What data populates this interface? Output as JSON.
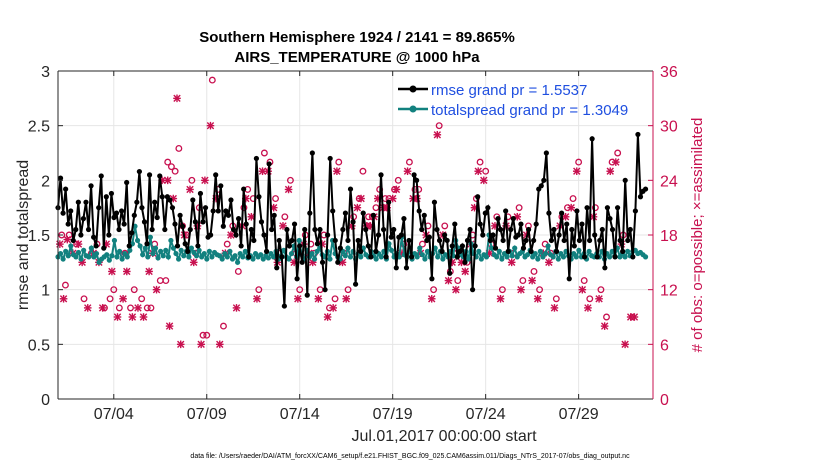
{
  "chart_data": {
    "type": "line",
    "title_line1": "Southern Hemisphere 1924 / 2141 = 89.865%",
    "title_line2": "AIRS_TEMPERATURE @ 1000 hPa",
    "xlabel": "Jul.01,2017 00:00:00 start",
    "ylabel_left": "rmse and totalspread",
    "ylabel_right": "# of obs: o=possible; ×=assimilated",
    "xlim": [
      1,
      33
    ],
    "ylim_left": [
      0,
      3
    ],
    "ylim_right": [
      0,
      36
    ],
    "x_ticks": [
      4,
      9,
      14,
      19,
      24,
      29
    ],
    "x_tick_labels": [
      "07/04",
      "07/09",
      "07/14",
      "07/19",
      "07/24",
      "07/29"
    ],
    "y_ticks_left": [
      0,
      0.5,
      1,
      1.5,
      2,
      2.5,
      3
    ],
    "y_tick_labels_left": [
      "0",
      "0.5",
      "1",
      "1.5",
      "2",
      "2.5",
      "3"
    ],
    "y_ticks_right": [
      0,
      6,
      12,
      18,
      24,
      30,
      36
    ],
    "y_tick_labels_right": [
      "0",
      "6",
      "12",
      "18",
      "24",
      "30",
      "36"
    ],
    "legend": [
      "rmse grand pr = 1.5537",
      "totalspread grand pr = 1.3049"
    ],
    "footnote": "data file: /Users/raeder/DAI/ATM_forcXX/CAM6_setup/f.e21.FHIST_BGC.f09_025.CAM6assim.011/Diags_NTrS_2017-07/obs_diag_output.nc",
    "colors": {
      "rmse": "#000000",
      "spread": "#12817f",
      "obs": "#c8104f",
      "grid": "#e6e6e6"
    },
    "series": [
      {
        "name": "rmse",
        "values": [
          1.75,
          2.02,
          1.7,
          1.92,
          1.6,
          1.72,
          1.45,
          1.55,
          1.8,
          1.5,
          1.65,
          1.8,
          1.55,
          1.95,
          1.48,
          1.4,
          1.75,
          2.04,
          1.38,
          1.85,
          1.5,
          1.88,
          1.66,
          1.7,
          1.55,
          1.72,
          1.6,
          1.98,
          1.4,
          1.52,
          1.68,
          1.8,
          2.08,
          1.75,
          1.62,
          1.42,
          2.05,
          1.55,
          1.8,
          1.66,
          2.04,
          1.85,
          1.55,
          1.85,
          1.82,
          1.75,
          1.6,
          1.4,
          1.68,
          1.58,
          1.42,
          1.35,
          1.55,
          1.82,
          1.62,
          1.4,
          1.88,
          1.62,
          1.75,
          1.48,
          1.5,
          1.72,
          2.05,
          1.72,
          1.95,
          1.58,
          1.72,
          1.68,
          1.82,
          1.55,
          1.5,
          1.65,
          1.4,
          1.92,
          1.6,
          1.3,
          1.55,
          1.45,
          2.2,
          1.85,
          1.62,
          1.5,
          1.35,
          2.15,
          1.55,
          1.68,
          1.2,
          1.45,
          1.3,
          0.85,
          1.55,
          1.4,
          1.45,
          1.6,
          1.1,
          1.4,
          1.25,
          1.55,
          0.95,
          1.7,
          2.25,
          1.55,
          1.42,
          1.55,
          1.25,
          1.0,
          1.5,
          2.2,
          1.72,
          1.45,
          1.25,
          1.38,
          1.55,
          1.7,
          1.45,
          1.92,
          1.62,
          1.05,
          1.45,
          1.35,
          1.7,
          1.55,
          1.4,
          1.3,
          1.68,
          1.35,
          1.5,
          2.05,
          1.55,
          1.3,
          1.8,
          1.48,
          1.55,
          1.2,
          1.48,
          1.5,
          1.65,
          1.2,
          1.45,
          1.3,
          2.05,
          2.0,
          1.72,
          1.55,
          1.68,
          1.45,
          1.48,
          1.1,
          1.8,
          1.55,
          1.45,
          1.35,
          1.5,
          1.45,
          1.15,
          1.4,
          1.6,
          1.3,
          1.35,
          1.4,
          1.25,
          1.45,
          1.55,
          1.0,
          1.4,
          1.85,
          1.6,
          1.5,
          1.7,
          1.75,
          1.45,
          1.5,
          1.38,
          1.65,
          1.55,
          1.45,
          1.72,
          1.35,
          1.55,
          1.65,
          1.48,
          1.5,
          1.6,
          1.38,
          1.45,
          1.55,
          1.35,
          1.45,
          1.6,
          1.92,
          1.95,
          2.0,
          2.25,
          1.7,
          1.45,
          1.55,
          1.35,
          1.5,
          1.7,
          1.45,
          1.6,
          1.1,
          1.55,
          1.4,
          1.72,
          1.45,
          1.6,
          1.3,
          1.75,
          1.45,
          2.38,
          1.5,
          1.3,
          1.45,
          1.55,
          1.2,
          1.75,
          1.65,
          1.55,
          1.3,
          1.75,
          1.45,
          1.35,
          2.0,
          1.45,
          1.55,
          1.3,
          1.72,
          2.42,
          1.85,
          1.9,
          1.92
        ]
      },
      {
        "name": "totalspread",
        "values": [
          1.3,
          1.33,
          1.28,
          1.35,
          1.31,
          1.4,
          1.32,
          1.3,
          1.34,
          1.28,
          1.36,
          1.31,
          1.3,
          1.38,
          1.3,
          1.33,
          1.25,
          1.28,
          1.3,
          1.32,
          1.27,
          1.31,
          1.45,
          1.3,
          1.35,
          1.28,
          1.33,
          1.3,
          1.36,
          1.42,
          1.58,
          1.45,
          1.4,
          1.32,
          1.38,
          1.3,
          1.48,
          1.33,
          1.38,
          1.29,
          1.35,
          1.31,
          1.36,
          1.3,
          1.45,
          1.38,
          1.33,
          1.28,
          1.36,
          1.31,
          1.35,
          1.3,
          1.38,
          1.34,
          1.31,
          1.36,
          1.3,
          1.33,
          1.28,
          1.35,
          1.3,
          1.34,
          1.32,
          1.31,
          1.28,
          1.33,
          1.3,
          1.35,
          1.28,
          1.31,
          1.25,
          1.33,
          1.3,
          1.35,
          1.29,
          1.31,
          1.28,
          1.33,
          1.3,
          1.32,
          1.28,
          1.31,
          1.29,
          1.33,
          1.3,
          1.35,
          1.28,
          1.31,
          1.36,
          1.3,
          1.28,
          1.33,
          1.4,
          1.3,
          1.45,
          1.32,
          1.28,
          1.36,
          1.3,
          1.33,
          1.28,
          1.35,
          1.38,
          1.32,
          1.3,
          1.35,
          1.28,
          1.45,
          1.33,
          1.3,
          1.28,
          1.35,
          1.31,
          1.38,
          1.3,
          1.35,
          1.28,
          1.33,
          1.3,
          1.38,
          1.32,
          1.3,
          1.35,
          1.31,
          1.28,
          1.33,
          1.3,
          1.35,
          1.28,
          1.42,
          1.36,
          1.3,
          1.33,
          1.3,
          1.48,
          1.32,
          1.3,
          1.35,
          1.28,
          1.33,
          1.3,
          1.38,
          1.32,
          1.28,
          1.35,
          1.3,
          1.33,
          1.38,
          1.3,
          1.35,
          1.28,
          1.32,
          1.3,
          1.35,
          1.31,
          1.45,
          1.38,
          1.32,
          1.3,
          1.35,
          1.28,
          1.42,
          1.33,
          1.3,
          1.35,
          1.28,
          1.32,
          1.3,
          1.5,
          1.38,
          1.32,
          1.3,
          1.35,
          1.28,
          1.33,
          1.3,
          1.35,
          1.31,
          1.38,
          1.3,
          1.33,
          1.35,
          1.3,
          1.32,
          1.36,
          1.3,
          1.33,
          1.28,
          1.35,
          1.3,
          1.33,
          1.4,
          1.32,
          1.3,
          1.35,
          1.28,
          1.33,
          1.3,
          1.35,
          1.31,
          1.28,
          1.33,
          1.3,
          1.36,
          1.3,
          1.33,
          1.28,
          1.35,
          1.31,
          1.3,
          1.33,
          1.3,
          1.35,
          1.28,
          1.33,
          1.3,
          1.35,
          1.31,
          1.38,
          1.3,
          1.33,
          1.3,
          1.35,
          1.31,
          1.35,
          1.36,
          1.33,
          1.34,
          1.32,
          1.3
        ]
      }
    ],
    "obs_possible": [
      [
        1.2,
        18
      ],
      [
        1.4,
        12.5
      ],
      [
        1.6,
        18
      ],
      [
        2.0,
        17
      ],
      [
        2.4,
        11
      ],
      [
        2.8,
        16
      ],
      [
        3.1,
        17
      ],
      [
        3.5,
        10
      ],
      [
        3.8,
        11
      ],
      [
        4.0,
        12
      ],
      [
        4.3,
        10
      ],
      [
        4.6,
        16
      ],
      [
        4.9,
        10
      ],
      [
        5.1,
        12
      ],
      [
        5.5,
        11
      ],
      [
        5.8,
        10
      ],
      [
        6.0,
        10
      ],
      [
        6.2,
        17
      ],
      [
        6.5,
        13
      ],
      [
        6.8,
        13
      ],
      [
        6.9,
        26
      ],
      [
        7.1,
        25.5
      ],
      [
        7.3,
        25
      ],
      [
        7.5,
        27.5
      ],
      [
        7.7,
        19
      ],
      [
        7.9,
        18
      ],
      [
        8.2,
        24
      ],
      [
        8.4,
        16
      ],
      [
        8.6,
        21
      ],
      [
        8.8,
        7
      ],
      [
        9.0,
        7
      ],
      [
        9.3,
        35
      ],
      [
        9.6,
        23
      ],
      [
        9.9,
        8
      ],
      [
        10.1,
        17
      ],
      [
        10.4,
        19
      ],
      [
        10.7,
        14
      ],
      [
        11.0,
        21
      ],
      [
        11.2,
        23
      ],
      [
        11.5,
        22
      ],
      [
        11.8,
        12
      ],
      [
        12.1,
        27
      ],
      [
        12.4,
        26
      ],
      [
        12.7,
        22
      ],
      [
        12.9,
        16
      ],
      [
        13.2,
        20
      ],
      [
        13.5,
        24
      ],
      [
        13.8,
        16
      ],
      [
        14.0,
        12
      ],
      [
        14.3,
        18
      ],
      [
        14.6,
        17
      ],
      [
        14.8,
        16
      ],
      [
        15.1,
        12
      ],
      [
        15.3,
        18
      ],
      [
        15.6,
        10
      ],
      [
        15.9,
        11
      ],
      [
        16.1,
        26
      ],
      [
        16.4,
        16
      ],
      [
        16.6,
        12
      ],
      [
        16.9,
        20
      ],
      [
        17.2,
        22
      ],
      [
        17.4,
        25
      ],
      [
        17.7,
        20
      ],
      [
        17.9,
        20
      ],
      [
        18.1,
        21
      ],
      [
        18.3,
        23
      ],
      [
        18.6,
        22
      ],
      [
        18.8,
        22
      ],
      [
        19.1,
        23
      ],
      [
        19.3,
        24
      ],
      [
        19.6,
        17
      ],
      [
        19.9,
        26
      ],
      [
        20.2,
        23
      ],
      [
        20.4,
        23
      ],
      [
        20.6,
        17
      ],
      [
        20.9,
        19
      ],
      [
        21.2,
        12
      ],
      [
        21.5,
        30
      ],
      [
        21.8,
        19
      ],
      [
        22.1,
        14
      ],
      [
        22.3,
        16
      ],
      [
        22.5,
        13
      ],
      [
        22.8,
        16
      ],
      [
        23.0,
        15
      ],
      [
        23.3,
        18
      ],
      [
        23.5,
        22
      ],
      [
        23.7,
        26
      ],
      [
        24.0,
        25
      ],
      [
        24.3,
        17
      ],
      [
        24.6,
        20
      ],
      [
        24.9,
        12
      ],
      [
        25.2,
        20
      ],
      [
        25.5,
        16
      ],
      [
        25.8,
        21
      ],
      [
        26.0,
        13
      ],
      [
        26.3,
        19
      ],
      [
        26.6,
        14
      ],
      [
        26.9,
        12
      ],
      [
        27.2,
        17
      ],
      [
        27.5,
        16
      ],
      [
        27.8,
        11
      ],
      [
        28.1,
        20
      ],
      [
        28.4,
        21
      ],
      [
        28.7,
        22
      ],
      [
        29.0,
        26
      ],
      [
        29.3,
        13
      ],
      [
        29.6,
        11
      ],
      [
        29.9,
        21
      ],
      [
        30.2,
        12
      ],
      [
        30.5,
        9
      ],
      [
        30.8,
        26
      ],
      [
        31.1,
        27
      ],
      [
        31.4,
        18
      ]
    ],
    "obs_assimilated": [
      [
        1.1,
        17
      ],
      [
        1.3,
        11
      ],
      [
        1.5,
        17.5
      ],
      [
        1.8,
        16
      ],
      [
        2.1,
        17
      ],
      [
        2.3,
        15
      ],
      [
        2.6,
        10
      ],
      [
        2.9,
        16
      ],
      [
        3.2,
        15
      ],
      [
        3.4,
        10
      ],
      [
        3.6,
        17
      ],
      [
        3.9,
        14
      ],
      [
        4.2,
        9
      ],
      [
        4.5,
        11
      ],
      [
        4.7,
        14
      ],
      [
        5.0,
        9
      ],
      [
        5.3,
        10
      ],
      [
        5.6,
        9
      ],
      [
        5.9,
        14
      ],
      [
        6.1,
        16
      ],
      [
        6.3,
        12
      ],
      [
        6.6,
        24
      ],
      [
        6.9,
        24
      ],
      [
        7.0,
        8
      ],
      [
        7.2,
        22
      ],
      [
        7.4,
        33
      ],
      [
        7.6,
        6
      ],
      [
        7.8,
        18
      ],
      [
        8.1,
        23
      ],
      [
        8.3,
        15
      ],
      [
        8.5,
        19
      ],
      [
        8.7,
        6
      ],
      [
        8.9,
        24
      ],
      [
        9.2,
        30
      ],
      [
        9.5,
        22
      ],
      [
        9.7,
        6
      ],
      [
        10.0,
        16
      ],
      [
        10.3,
        18
      ],
      [
        10.6,
        10
      ],
      [
        10.9,
        19
      ],
      [
        11.1,
        22
      ],
      [
        11.4,
        20
      ],
      [
        11.7,
        11
      ],
      [
        12.0,
        25
      ],
      [
        12.3,
        25
      ],
      [
        12.6,
        21
      ],
      [
        12.8,
        15
      ],
      [
        13.1,
        19
      ],
      [
        13.4,
        23
      ],
      [
        13.7,
        15
      ],
      [
        13.9,
        11
      ],
      [
        14.2,
        17
      ],
      [
        14.5,
        16
      ],
      [
        14.7,
        15
      ],
      [
        15.0,
        11
      ],
      [
        15.2,
        17
      ],
      [
        15.5,
        9
      ],
      [
        15.8,
        10
      ],
      [
        16.0,
        25
      ],
      [
        16.3,
        15
      ],
      [
        16.5,
        11
      ],
      [
        16.8,
        19
      ],
      [
        17.1,
        21
      ],
      [
        17.3,
        22
      ],
      [
        17.6,
        19
      ],
      [
        17.8,
        19
      ],
      [
        18.0,
        20
      ],
      [
        18.2,
        22
      ],
      [
        18.5,
        21
      ],
      [
        18.7,
        21
      ],
      [
        19.0,
        22
      ],
      [
        19.2,
        23
      ],
      [
        19.5,
        16
      ],
      [
        19.8,
        25
      ],
      [
        20.1,
        22
      ],
      [
        20.3,
        22
      ],
      [
        20.5,
        16
      ],
      [
        20.8,
        18
      ],
      [
        21.1,
        11
      ],
      [
        21.4,
        29
      ],
      [
        21.7,
        18
      ],
      [
        22.0,
        13
      ],
      [
        22.2,
        15
      ],
      [
        22.4,
        12
      ],
      [
        22.7,
        15
      ],
      [
        22.9,
        14
      ],
      [
        23.2,
        17
      ],
      [
        23.4,
        21
      ],
      [
        23.6,
        25
      ],
      [
        23.9,
        24
      ],
      [
        24.2,
        16
      ],
      [
        24.5,
        19
      ],
      [
        24.8,
        11
      ],
      [
        25.1,
        19
      ],
      [
        25.4,
        15
      ],
      [
        25.7,
        20
      ],
      [
        25.9,
        12
      ],
      [
        26.2,
        18
      ],
      [
        26.5,
        13
      ],
      [
        26.8,
        11
      ],
      [
        27.1,
        16
      ],
      [
        27.4,
        15
      ],
      [
        27.7,
        10
      ],
      [
        28.0,
        19
      ],
      [
        28.3,
        20
      ],
      [
        28.6,
        21
      ],
      [
        28.9,
        25
      ],
      [
        29.2,
        12
      ],
      [
        29.5,
        10
      ],
      [
        29.8,
        20
      ],
      [
        30.1,
        11
      ],
      [
        30.4,
        8
      ],
      [
        30.7,
        25
      ],
      [
        31.0,
        26
      ],
      [
        31.3,
        17
      ],
      [
        31.5,
        6
      ],
      [
        31.8,
        9
      ],
      [
        32.0,
        9
      ]
    ]
  }
}
